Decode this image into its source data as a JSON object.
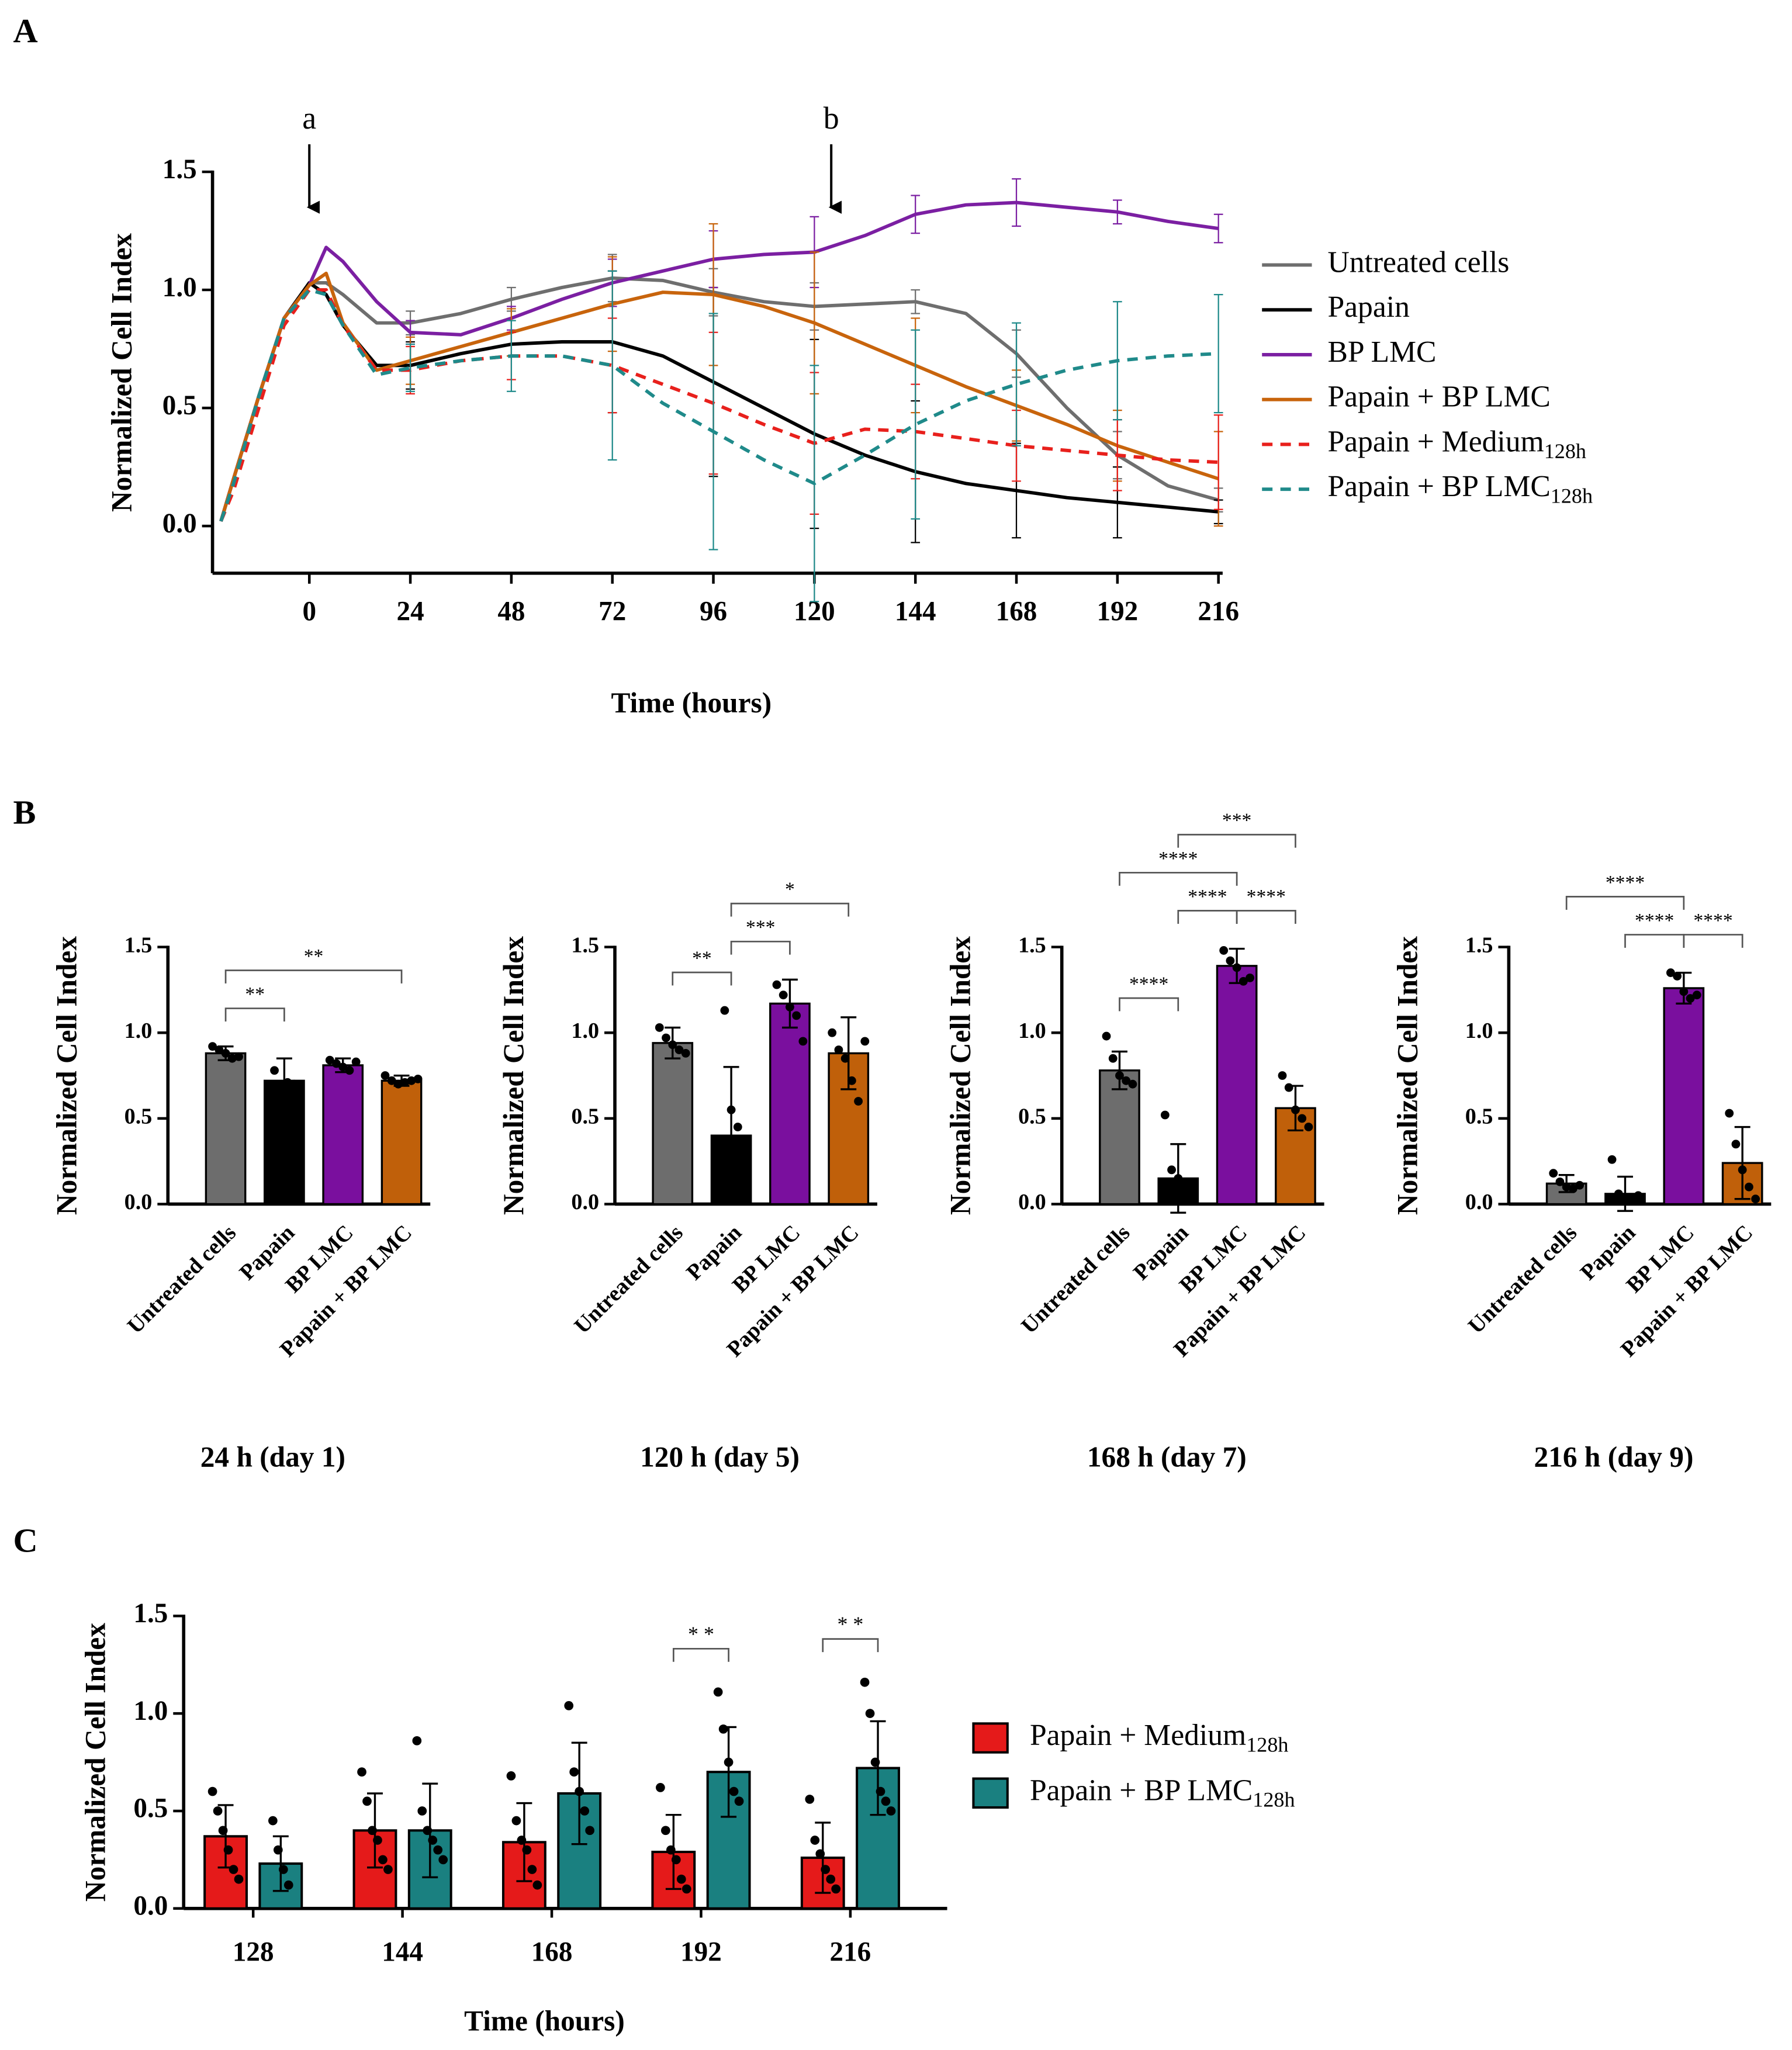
{
  "chart_data": [
    {
      "type": "line",
      "panel_label": "A",
      "ylabel": "Normalized Cell Index",
      "xlabel": "Time (hours)",
      "xlim": [
        -23,
        217
      ],
      "xticks": [
        0,
        24,
        48,
        72,
        96,
        120,
        144,
        168,
        192,
        216
      ],
      "ylim": [
        -0.2,
        1.5
      ],
      "yticks": [
        {
          "value": 0,
          "label": "0.0"
        },
        {
          "value": 0.5,
          "label": "0.5"
        },
        {
          "value": 1,
          "label": "1.0"
        },
        {
          "value": 1.5,
          "label": "1.5"
        }
      ],
      "annotations": [
        {
          "text": "a",
          "x": 0
        },
        {
          "text": "b",
          "x": 124
        }
      ],
      "x": [
        -21,
        -18,
        -12,
        -6,
        0,
        4,
        8,
        16,
        24,
        36,
        48,
        60,
        72,
        84,
        96,
        108,
        120,
        132,
        144,
        156,
        168,
        180,
        192,
        204,
        216
      ],
      "series": [
        {
          "name": "Untreated cells",
          "color": "#6e6e6e",
          "dash": false,
          "values": [
            0.02,
            0.2,
            0.55,
            0.88,
            1.03,
            1.03,
            0.98,
            0.86,
            0.86,
            0.9,
            0.96,
            1.01,
            1.05,
            1.04,
            0.99,
            0.95,
            0.93,
            0.94,
            0.95,
            0.9,
            0.73,
            0.5,
            0.3,
            0.17,
            0.11
          ],
          "errors": [
            null,
            null,
            null,
            null,
            null,
            null,
            null,
            null,
            0.05,
            null,
            0.05,
            null,
            0.1,
            null,
            0.1,
            null,
            0.1,
            null,
            0.05,
            null,
            0.1,
            null,
            0.1,
            null,
            0.05
          ]
        },
        {
          "name": "Papain",
          "color": "#000000",
          "dash": false,
          "values": [
            0.02,
            0.2,
            0.55,
            0.88,
            1.03,
            0.98,
            0.85,
            0.68,
            0.68,
            0.73,
            0.77,
            0.78,
            0.78,
            0.72,
            0.61,
            0.5,
            0.39,
            0.3,
            0.23,
            0.18,
            0.15,
            0.12,
            0.1,
            0.08,
            0.06
          ],
          "errors": [
            null,
            null,
            null,
            null,
            null,
            null,
            null,
            null,
            0.1,
            null,
            0.05,
            null,
            0.3,
            null,
            0.4,
            null,
            0.4,
            null,
            0.3,
            null,
            0.2,
            null,
            0.15,
            null,
            0.05
          ]
        },
        {
          "name": "BP LMC",
          "color": "#7b1fa2",
          "dash": false,
          "values": [
            0.02,
            0.2,
            0.55,
            0.88,
            1.02,
            1.18,
            1.12,
            0.95,
            0.82,
            0.81,
            0.88,
            0.96,
            1.03,
            1.08,
            1.13,
            1.15,
            1.16,
            1.23,
            1.32,
            1.36,
            1.37,
            1.35,
            1.33,
            1.29,
            1.26
          ],
          "errors": [
            null,
            null,
            null,
            null,
            null,
            null,
            null,
            null,
            0.05,
            null,
            0.05,
            null,
            0.1,
            null,
            0.12,
            null,
            0.15,
            null,
            0.08,
            null,
            0.1,
            null,
            0.05,
            null,
            0.06
          ]
        },
        {
          "name": "Papain + BP LMC",
          "color": "#c8640c",
          "dash": false,
          "values": [
            0.02,
            0.2,
            0.55,
            0.88,
            1.02,
            1.07,
            0.86,
            0.66,
            0.7,
            0.76,
            0.82,
            0.88,
            0.94,
            0.99,
            0.98,
            0.93,
            0.86,
            0.77,
            0.68,
            0.59,
            0.51,
            0.43,
            0.34,
            0.27,
            0.2
          ],
          "errors": [
            null,
            null,
            null,
            null,
            null,
            null,
            null,
            null,
            0.1,
            null,
            0.1,
            null,
            0.2,
            null,
            0.3,
            null,
            0.3,
            null,
            0.2,
            null,
            0.15,
            null,
            0.15,
            null,
            0.2
          ]
        },
        {
          "name": "Papain + Medium",
          "name_sub": "128h",
          "color": "#e8201c",
          "dash": true,
          "values": [
            0.02,
            0.15,
            0.5,
            0.85,
            1.0,
            1.0,
            0.85,
            0.66,
            0.66,
            0.7,
            0.72,
            0.72,
            0.68,
            0.6,
            0.52,
            0.43,
            0.35,
            0.41,
            0.4,
            0.37,
            0.34,
            0.32,
            0.3,
            0.28,
            0.27
          ],
          "errors": [
            null,
            null,
            null,
            null,
            null,
            null,
            null,
            null,
            0.1,
            null,
            0.1,
            null,
            0.2,
            null,
            0.3,
            null,
            0.3,
            null,
            0.2,
            null,
            0.15,
            null,
            0.15,
            null,
            0.2
          ]
        },
        {
          "name": "Papain + BP  LMC",
          "name_sub": "128h",
          "color": "#1f8a8a",
          "dash": true,
          "values": [
            0.02,
            0.18,
            0.55,
            0.88,
            1.0,
            0.98,
            0.85,
            0.64,
            0.67,
            0.7,
            0.72,
            0.72,
            0.68,
            0.52,
            0.4,
            0.28,
            0.18,
            0.3,
            0.43,
            0.53,
            0.6,
            0.66,
            0.7,
            0.72,
            0.73
          ],
          "errors": [
            null,
            null,
            null,
            null,
            null,
            null,
            null,
            null,
            0.1,
            null,
            0.15,
            null,
            0.4,
            null,
            0.5,
            null,
            0.5,
            null,
            0.4,
            null,
            0.26,
            null,
            0.25,
            null,
            0.25
          ]
        }
      ]
    },
    {
      "type": "bar",
      "panel_label": "B",
      "title": "24 h  (day 1)",
      "ylabel": "Normalized Cell Index",
      "categories": [
        "Untreated cells",
        "Papain",
        "BP LMC",
        "Papain + BP LMC"
      ],
      "colors": [
        "#6d6d6d",
        "#000000",
        "#7a0f9e",
        "#c0600a"
      ],
      "ylim": [
        0,
        1.5
      ],
      "yticks": [
        {
          "value": 0,
          "label": "0.0"
        },
        {
          "value": 0.5,
          "label": "0.5"
        },
        {
          "value": 1,
          "label": "1.0"
        },
        {
          "value": 1.5,
          "label": "1.5"
        }
      ],
      "values": [
        0.88,
        0.72,
        0.81,
        0.72
      ],
      "errors": [
        0.04,
        0.13,
        0.04,
        0.03
      ],
      "points": [
        [
          0.92,
          0.9,
          0.88,
          0.85,
          0.86
        ],
        [
          0.78,
          0.67,
          0.71,
          0.7
        ],
        [
          0.84,
          0.82,
          0.8,
          0.78,
          0.83
        ],
        [
          0.75,
          0.72,
          0.7,
          0.71,
          0.72,
          0.73
        ]
      ],
      "brackets": [
        {
          "from": 0,
          "to": 1,
          "label": "**"
        },
        {
          "from": 0,
          "to": 3,
          "label": "**"
        }
      ]
    },
    {
      "type": "bar",
      "title": "120 h  (day 5)",
      "ylabel": "Normalized Cell Index",
      "categories": [
        "Untreated cells",
        "Papain",
        "BP LMC",
        "Papain + BP LMC"
      ],
      "colors": [
        "#6d6d6d",
        "#000000",
        "#7a0f9e",
        "#c0600a"
      ],
      "ylim": [
        0,
        1.5
      ],
      "yticks": [
        {
          "value": 0,
          "label": "0.0"
        },
        {
          "value": 0.5,
          "label": "0.5"
        },
        {
          "value": 1,
          "label": "1.0"
        },
        {
          "value": 1.5,
          "label": "1.5"
        }
      ],
      "values": [
        0.94,
        0.4,
        1.17,
        0.88
      ],
      "errors": [
        0.09,
        0.4,
        0.14,
        0.21
      ],
      "points": [
        [
          1.03,
          0.97,
          0.93,
          0.9,
          0.88
        ],
        [
          1.13,
          0.55,
          0.45
        ],
        [
          1.28,
          1.22,
          1.15,
          1.1,
          0.95
        ],
        [
          1.0,
          0.9,
          0.85,
          0.72,
          0.6,
          0.95
        ]
      ],
      "brackets": [
        {
          "from": 0,
          "to": 1,
          "label": "**"
        },
        {
          "from": 1,
          "to": 2,
          "label": "***"
        },
        {
          "from": 1,
          "to": 3,
          "label": "*"
        }
      ]
    },
    {
      "type": "bar",
      "title": "168 h  (day 7)",
      "ylabel": "Normalized Cell Index",
      "categories": [
        "Untreated cells",
        "Papain",
        "BP LMC",
        "Papain + BP LMC"
      ],
      "colors": [
        "#6d6d6d",
        "#000000",
        "#7a0f9e",
        "#c0600a"
      ],
      "ylim": [
        0,
        1.5
      ],
      "yticks": [
        {
          "value": 0,
          "label": "0.0"
        },
        {
          "value": 0.5,
          "label": "0.5"
        },
        {
          "value": 1,
          "label": "1.0"
        },
        {
          "value": 1.5,
          "label": "1.5"
        }
      ],
      "values": [
        0.78,
        0.15,
        1.39,
        0.56
      ],
      "errors": [
        0.11,
        0.2,
        0.1,
        0.13
      ],
      "points": [
        [
          0.98,
          0.85,
          0.75,
          0.72,
          0.7
        ],
        [
          0.52,
          0.2,
          0.15,
          0.12,
          0.1
        ],
        [
          1.48,
          1.42,
          1.38,
          1.3,
          1.32
        ],
        [
          0.75,
          0.68,
          0.55,
          0.5,
          0.45
        ]
      ],
      "brackets": [
        {
          "from": 0,
          "to": 1,
          "label": "****"
        },
        {
          "from": 1,
          "to": 2,
          "label": "****"
        },
        {
          "from": 2,
          "to": 3,
          "label": "****"
        },
        {
          "from": 0,
          "to": 2,
          "label": "****"
        },
        {
          "from": 1,
          "to": 3,
          "label": "***"
        }
      ]
    },
    {
      "type": "bar",
      "title": "216 h  (day 9)",
      "ylabel": "Normalized Cell Index",
      "categories": [
        "Untreated cells",
        "Papain",
        "BP LMC",
        "Papain + BP LMC"
      ],
      "colors": [
        "#6d6d6d",
        "#000000",
        "#7a0f9e",
        "#c0600a"
      ],
      "ylim": [
        0,
        1.5
      ],
      "yticks": [
        {
          "value": 0,
          "label": "0.0"
        },
        {
          "value": 0.5,
          "label": "0.5"
        },
        {
          "value": 1,
          "label": "1.0"
        },
        {
          "value": 1.5,
          "label": "1.5"
        }
      ],
      "values": [
        0.12,
        0.06,
        1.26,
        0.24
      ],
      "errors": [
        0.05,
        0.1,
        0.09,
        0.21
      ],
      "points": [
        [
          0.18,
          0.13,
          0.1,
          0.09,
          0.11
        ],
        [
          0.26,
          0.06,
          0.03,
          0.02,
          0.05
        ],
        [
          1.35,
          1.33,
          1.24,
          1.2,
          1.22
        ],
        [
          0.53,
          0.35,
          0.2,
          0.1,
          0.03
        ]
      ],
      "brackets": [
        {
          "from": 1,
          "to": 2,
          "label": "****"
        },
        {
          "from": 2,
          "to": 3,
          "label": "****"
        },
        {
          "from": 0,
          "to": 2,
          "label": "****"
        }
      ]
    },
    {
      "type": "grouped-bar",
      "panel_label": "C",
      "ylabel": "Normalized Cell Index",
      "xlabel": "Time (hours)",
      "categories": [
        "128",
        "144",
        "168",
        "192",
        "216"
      ],
      "ylim": [
        0,
        1.5
      ],
      "yticks": [
        {
          "value": 0,
          "label": "0.0"
        },
        {
          "value": 0.5,
          "label": "0.5"
        },
        {
          "value": 1,
          "label": "1.0"
        },
        {
          "value": 1.5,
          "label": "1.5"
        }
      ],
      "series": [
        {
          "name": "Papain + Medium",
          "name_sub": "128h",
          "color": "#e51a1a",
          "values": [
            0.37,
            0.4,
            0.34,
            0.29,
            0.26
          ],
          "errors": [
            0.16,
            0.19,
            0.2,
            0.19,
            0.18
          ],
          "points": [
            [
              0.6,
              0.5,
              0.4,
              0.3,
              0.2,
              0.15
            ],
            [
              0.7,
              0.55,
              0.4,
              0.35,
              0.25,
              0.2
            ],
            [
              0.68,
              0.45,
              0.35,
              0.3,
              0.2,
              0.12
            ],
            [
              0.62,
              0.4,
              0.3,
              0.25,
              0.15,
              0.1
            ],
            [
              0.56,
              0.35,
              0.28,
              0.2,
              0.15,
              0.1
            ]
          ]
        },
        {
          "name": "Papain + BP LMC",
          "name_sub": "128h",
          "color": "#1a8080",
          "values": [
            0.23,
            0.4,
            0.59,
            0.7,
            0.72
          ],
          "errors": [
            0.14,
            0.24,
            0.26,
            0.23,
            0.24
          ],
          "points": [
            [
              0.45,
              0.3,
              0.2,
              0.12
            ],
            [
              0.86,
              0.5,
              0.4,
              0.35,
              0.3,
              0.25
            ],
            [
              1.04,
              0.7,
              0.6,
              0.5,
              0.4
            ],
            [
              1.11,
              0.92,
              0.75,
              0.6,
              0.55
            ],
            [
              1.16,
              1.0,
              0.75,
              0.6,
              0.55,
              0.5
            ]
          ]
        }
      ],
      "brackets": [
        {
          "category": 3,
          "label": "* *"
        },
        {
          "category": 4,
          "label": "* *"
        }
      ]
    }
  ]
}
